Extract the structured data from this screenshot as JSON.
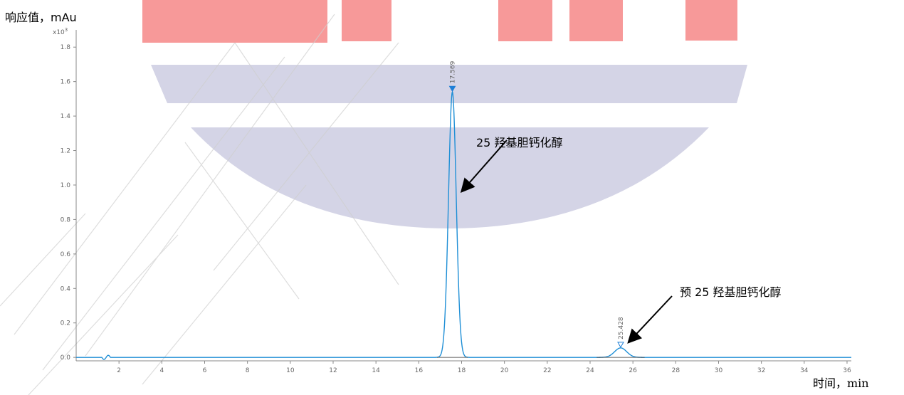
{
  "ylabel": "响应值，mAu",
  "xlabel": "时间，min",
  "scale_note": {
    "base": "x10",
    "exp": "3"
  },
  "chart_data": {
    "type": "line",
    "xlim": [
      0,
      36.2
    ],
    "ylim": [
      -0.02,
      1.9
    ],
    "x_ticks": [
      2,
      4,
      6,
      8,
      10,
      12,
      14,
      16,
      18,
      20,
      22,
      24,
      26,
      28,
      30,
      32,
      34,
      36
    ],
    "y_ticks": [
      0.0,
      0.2,
      0.4,
      0.6,
      0.8,
      1.0,
      1.2,
      1.4,
      1.6,
      1.8
    ],
    "series": [
      {
        "peaks": [
          {
            "rt": 17.569,
            "rt_label": "17.569",
            "height": 1.54,
            "width": 0.18,
            "marker": "filled"
          },
          {
            "rt": 25.428,
            "rt_label": "25.428",
            "height": 0.055,
            "width": 0.28,
            "marker": "open"
          }
        ]
      }
    ],
    "annotations": [
      {
        "text": "25 羟基胆钙化醇",
        "x": 17.569
      },
      {
        "text": "预  25 羟基胆钙化醇",
        "x": 25.428
      }
    ]
  },
  "colors": {
    "trace": "#1f8fd6",
    "marker": "#1f7fd6",
    "axis": "#888888",
    "tick_label": "#666666",
    "watermark_red": "#f25b5b",
    "watermark_blue": "#a9a9cc"
  }
}
